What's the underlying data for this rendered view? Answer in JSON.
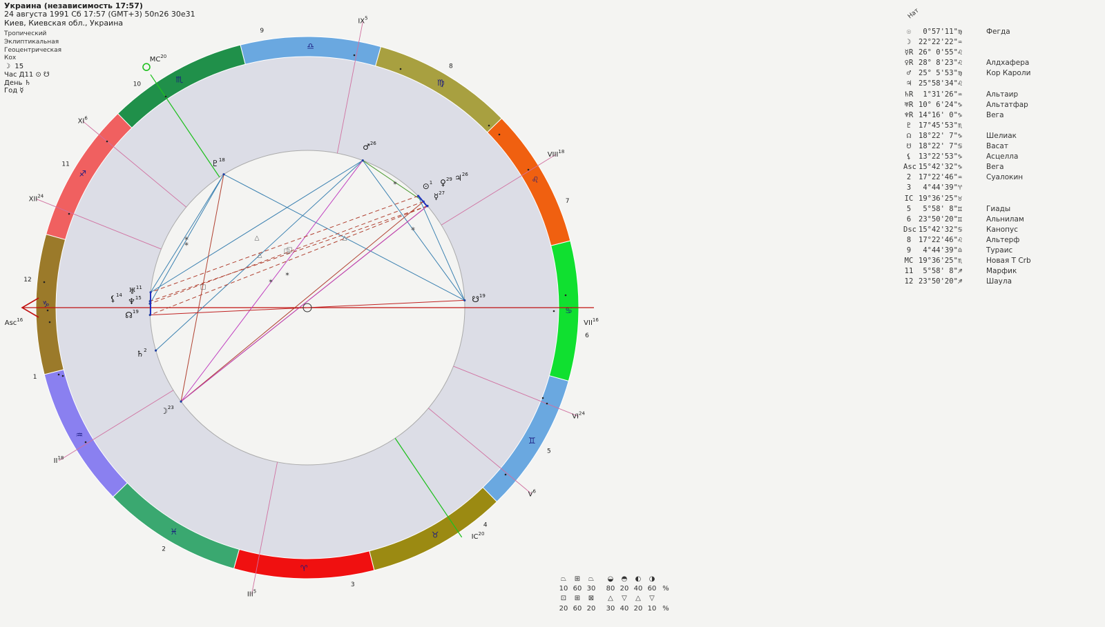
{
  "header": {
    "title": "Украина (независимость 17:57)",
    "line2": "24 августа 1991  Сб  17:57 (GMT+3) 50n26  30e31",
    "line3": "Киев, Киевская обл., Украина"
  },
  "settings": [
    "Тропический",
    "Эклиптикальная",
    "Геоцентрическая",
    "Кох"
  ],
  "indicators": [
    {
      "icon": "moon-icon",
      "glyph": "☽",
      "text": "15"
    },
    {
      "icon": "",
      "glyph": "",
      "text": "Час Д11 ⊙ ☋"
    },
    {
      "icon": "",
      "glyph": "",
      "text": "День ♄"
    },
    {
      "icon": "",
      "glyph": "",
      "text": "Год ☿"
    }
  ],
  "table": {
    "header": "Нат",
    "rows": [
      {
        "symbol": "☉",
        "icon": "sun-icon",
        "position": " 0°57'11\"♍",
        "star": "Фегда"
      },
      {
        "symbol": "☽",
        "icon": "moon-icon",
        "position": "22°22'22\"♒",
        "star": ""
      },
      {
        "symbol": "☿R",
        "icon": "mercury-icon",
        "position": "26° 0'55\"♌",
        "star": ""
      },
      {
        "symbol": "♀R",
        "icon": "venus-icon",
        "position": "28° 8'23\"♌",
        "star": "Алдхафера"
      },
      {
        "symbol": "♂",
        "icon": "mars-icon",
        "position": "25° 5'53\"♍",
        "star": "Кор Кароли"
      },
      {
        "symbol": "♃",
        "icon": "jupiter-icon",
        "position": "25°58'34\"♌",
        "star": ""
      },
      {
        "symbol": "♄R",
        "icon": "saturn-icon",
        "position": " 1°31'26\"♒",
        "star": "Альтаир"
      },
      {
        "symbol": "♅R",
        "icon": "uranus-icon",
        "position": "10° 6'24\"♑",
        "star": "Альтатфар"
      },
      {
        "symbol": "♆R",
        "icon": "neptune-icon",
        "position": "14°16' 0\"♑",
        "star": "Вега"
      },
      {
        "symbol": "♇",
        "icon": "pluto-icon",
        "position": "17°45'53\"♏",
        "star": ""
      },
      {
        "symbol": "☊",
        "icon": "north-node-icon",
        "position": "18°22' 7\"♑",
        "star": "Шелиак"
      },
      {
        "symbol": "☋",
        "icon": "south-node-icon",
        "position": "18°22' 7\"♋",
        "star": "Васат"
      },
      {
        "symbol": "⚸",
        "icon": "lilith-icon",
        "position": "13°22'53\"♑",
        "star": "Асцелла"
      },
      {
        "symbol": "Asc",
        "icon": "ascendant-icon",
        "position": "15°42'32\"♑",
        "star": "Вега"
      },
      {
        "symbol": "2",
        "icon": "house-2-icon",
        "position": "17°22'46\"♒",
        "star": "Суалокин"
      },
      {
        "symbol": "3",
        "icon": "house-3-icon",
        "position": " 4°44'39\"♈",
        "star": ""
      },
      {
        "symbol": "IC",
        "icon": "ic-icon",
        "position": "19°36'25\"♉",
        "star": ""
      },
      {
        "symbol": "5",
        "icon": "house-5-icon",
        "position": " 5°58' 8\"♊",
        "star": "Гиады"
      },
      {
        "symbol": "6",
        "icon": "house-6-icon",
        "position": "23°50'20\"♊",
        "star": "Альнилам"
      },
      {
        "symbol": "Dsc",
        "icon": "descendant-icon",
        "position": "15°42'32\"♋",
        "star": "Канопус"
      },
      {
        "symbol": "8",
        "icon": "house-8-icon",
        "position": "17°22'46\"♌",
        "star": "Альтерф"
      },
      {
        "symbol": "9",
        "icon": "house-9-icon",
        "position": " 4°44'39\"♎",
        "star": "Тураис"
      },
      {
        "symbol": "MC",
        "icon": "midheaven-icon",
        "position": "19°36'25\"♏",
        "star": "Новая T Crb"
      },
      {
        "symbol": "11",
        "icon": "house-11-icon",
        "position": " 5°58' 8\"♐",
        "star": "Марфик"
      },
      {
        "symbol": "12",
        "icon": "house-12-icon",
        "position": "23°50'20\"♐",
        "star": "Шаула"
      }
    ]
  },
  "wheel": {
    "signs": [
      {
        "name": "Aries",
        "glyph": "♈",
        "color": "#f01010"
      },
      {
        "name": "Taurus",
        "glyph": "♉",
        "color": "#9b8a12"
      },
      {
        "name": "Gemini",
        "glyph": "♊",
        "color": "#6aa8e0"
      },
      {
        "name": "Cancer",
        "glyph": "♋",
        "color": "#10e030"
      },
      {
        "name": "Leo",
        "glyph": "♌",
        "color": "#f06010"
      },
      {
        "name": "Virgo",
        "glyph": "♍",
        "color": "#a8a040"
      },
      {
        "name": "Libra",
        "glyph": "♎",
        "color": "#6aa8e0"
      },
      {
        "name": "Scorpio",
        "glyph": "♏",
        "color": "#20904a"
      },
      {
        "name": "Sagittarius",
        "glyph": "♐",
        "color": "#f06060"
      },
      {
        "name": "Capricorn",
        "glyph": "♑",
        "color": "#9b7a2a"
      },
      {
        "name": "Aquarius",
        "glyph": "♒",
        "color": "#8a80f0"
      },
      {
        "name": "Pisces",
        "glyph": "♓",
        "color": "#3aa870"
      }
    ],
    "angle_labels": {
      "asc": "Asc",
      "asc_deg": "16",
      "mc": "MC",
      "mc_deg": "20",
      "ic": "IC",
      "ic_deg": "20",
      "dsc": "VII",
      "dsc_deg": "16"
    },
    "house_cusps": [
      {
        "label": "II",
        "deg": "18",
        "lon": 317.38
      },
      {
        "label": "III",
        "deg": "5",
        "lon": 4.74
      },
      {
        "label": "V",
        "deg": "6",
        "lon": 65.97
      },
      {
        "label": "VI",
        "deg": "24",
        "lon": 83.84
      },
      {
        "label": "VIII",
        "deg": "18",
        "lon": 137.38
      },
      {
        "label": "IX",
        "deg": "5",
        "lon": 184.74
      },
      {
        "label": "XI",
        "deg": "6",
        "lon": 245.97
      },
      {
        "label": "XII",
        "deg": "24",
        "lon": 263.84
      }
    ],
    "house_numbers": [
      {
        "n": "1",
        "lon": 300
      },
      {
        "n": "2",
        "lon": 345
      },
      {
        "n": "3",
        "lon": 25
      },
      {
        "n": "4",
        "lon": 55
      },
      {
        "n": "5",
        "lon": 75
      },
      {
        "n": "6",
        "lon": 100
      },
      {
        "n": "7",
        "lon": 128
      },
      {
        "n": "8",
        "lon": 165
      },
      {
        "n": "9",
        "lon": 205
      },
      {
        "n": "10",
        "lon": 233
      },
      {
        "n": "11",
        "lon": 255
      },
      {
        "n": "12",
        "lon": 280
      }
    ],
    "planets": [
      {
        "name": "sun",
        "glyph": "⊙",
        "deg": "1",
        "retro": false,
        "lon": 150.95
      },
      {
        "name": "moon",
        "glyph": "☽",
        "deg": "23",
        "retro": false,
        "lon": 322.37
      },
      {
        "name": "mercury",
        "glyph": "☿",
        "deg": "27",
        "retro": true,
        "lon": 146.02
      },
      {
        "name": "venus",
        "glyph": "♀",
        "deg": "29",
        "retro": true,
        "lon": 148.14
      },
      {
        "name": "mars",
        "glyph": "♂",
        "deg": "26",
        "retro": false,
        "lon": 175.1
      },
      {
        "name": "jupiter",
        "glyph": "♃",
        "deg": "26",
        "retro": false,
        "lon": 145.98
      },
      {
        "name": "saturn",
        "glyph": "♄",
        "deg": "2",
        "retro": true,
        "lon": 301.52
      },
      {
        "name": "uranus",
        "glyph": "♅",
        "deg": "11",
        "retro": true,
        "lon": 280.11
      },
      {
        "name": "neptune",
        "glyph": "♆",
        "deg": "15",
        "retro": true,
        "lon": 284.27
      },
      {
        "name": "pluto",
        "glyph": "♇",
        "deg": "18",
        "retro": false,
        "lon": 227.76
      },
      {
        "name": "north-node",
        "glyph": "☊",
        "deg": "19",
        "retro": false,
        "lon": 288.37
      },
      {
        "name": "south-node",
        "glyph": "☋",
        "deg": "19",
        "retro": false,
        "lon": 108.37
      },
      {
        "name": "lilith",
        "glyph": "⚸",
        "deg": "14",
        "retro": false,
        "lon": 283.38
      }
    ],
    "aspects": [
      {
        "from": "pluto",
        "to": "uranus",
        "color": "#3a80b0",
        "style": "solid"
      },
      {
        "from": "pluto",
        "to": "neptune",
        "color": "#3a80b0",
        "style": "solid"
      },
      {
        "from": "pluto",
        "to": "south-node",
        "color": "#3a80b0",
        "style": "solid"
      },
      {
        "from": "mars",
        "to": "uranus",
        "color": "#3a80b0",
        "style": "solid"
      },
      {
        "from": "mars",
        "to": "saturn",
        "color": "#3a80b0",
        "style": "solid"
      },
      {
        "from": "mars",
        "to": "south-node",
        "color": "#3a80b0",
        "style": "solid"
      },
      {
        "from": "mars",
        "to": "moon",
        "color": "#c040c0",
        "style": "solid"
      },
      {
        "from": "mars",
        "to": "venus",
        "color": "#4a9a30",
        "style": "solid"
      },
      {
        "from": "pluto",
        "to": "moon",
        "color": "#b04030",
        "style": "solid"
      },
      {
        "from": "mercury",
        "to": "moon",
        "color": "#b04030",
        "style": "solid"
      },
      {
        "from": "venus",
        "to": "moon",
        "color": "#b04030",
        "style": "solid"
      },
      {
        "from": "sun",
        "to": "south-node",
        "color": "#3a80b0",
        "style": "solid"
      },
      {
        "from": "jupiter",
        "to": "moon",
        "color": "#c040c0",
        "style": "solid"
      },
      {
        "from": "sun",
        "to": "uranus",
        "color": "#b04030",
        "style": "dashed"
      },
      {
        "from": "venus",
        "to": "neptune",
        "color": "#b04030",
        "style": "dashed"
      },
      {
        "from": "mercury",
        "to": "north-node",
        "color": "#b04030",
        "style": "dashed"
      },
      {
        "from": "jupiter",
        "to": "lilith",
        "color": "#b04030",
        "style": "dashed"
      },
      {
        "from": "north-node",
        "to": "south-node",
        "color": "#c02020",
        "style": "solid"
      },
      {
        "from": "uranus",
        "to": "neptune",
        "color": "#2030c0",
        "style": "solid"
      }
    ]
  },
  "stats": {
    "row1_icons": [
      "cardinal-icon",
      "fixed-icon",
      "mutable-icon"
    ],
    "row1_vals": [
      "10",
      "60",
      "30"
    ],
    "row1_right_vals": [
      "80",
      "20",
      "40",
      "60",
      "%"
    ],
    "row2_vals": [
      "20",
      "60",
      "20"
    ],
    "row2_right_vals": [
      "30",
      "40",
      "20",
      "10",
      "%"
    ]
  }
}
